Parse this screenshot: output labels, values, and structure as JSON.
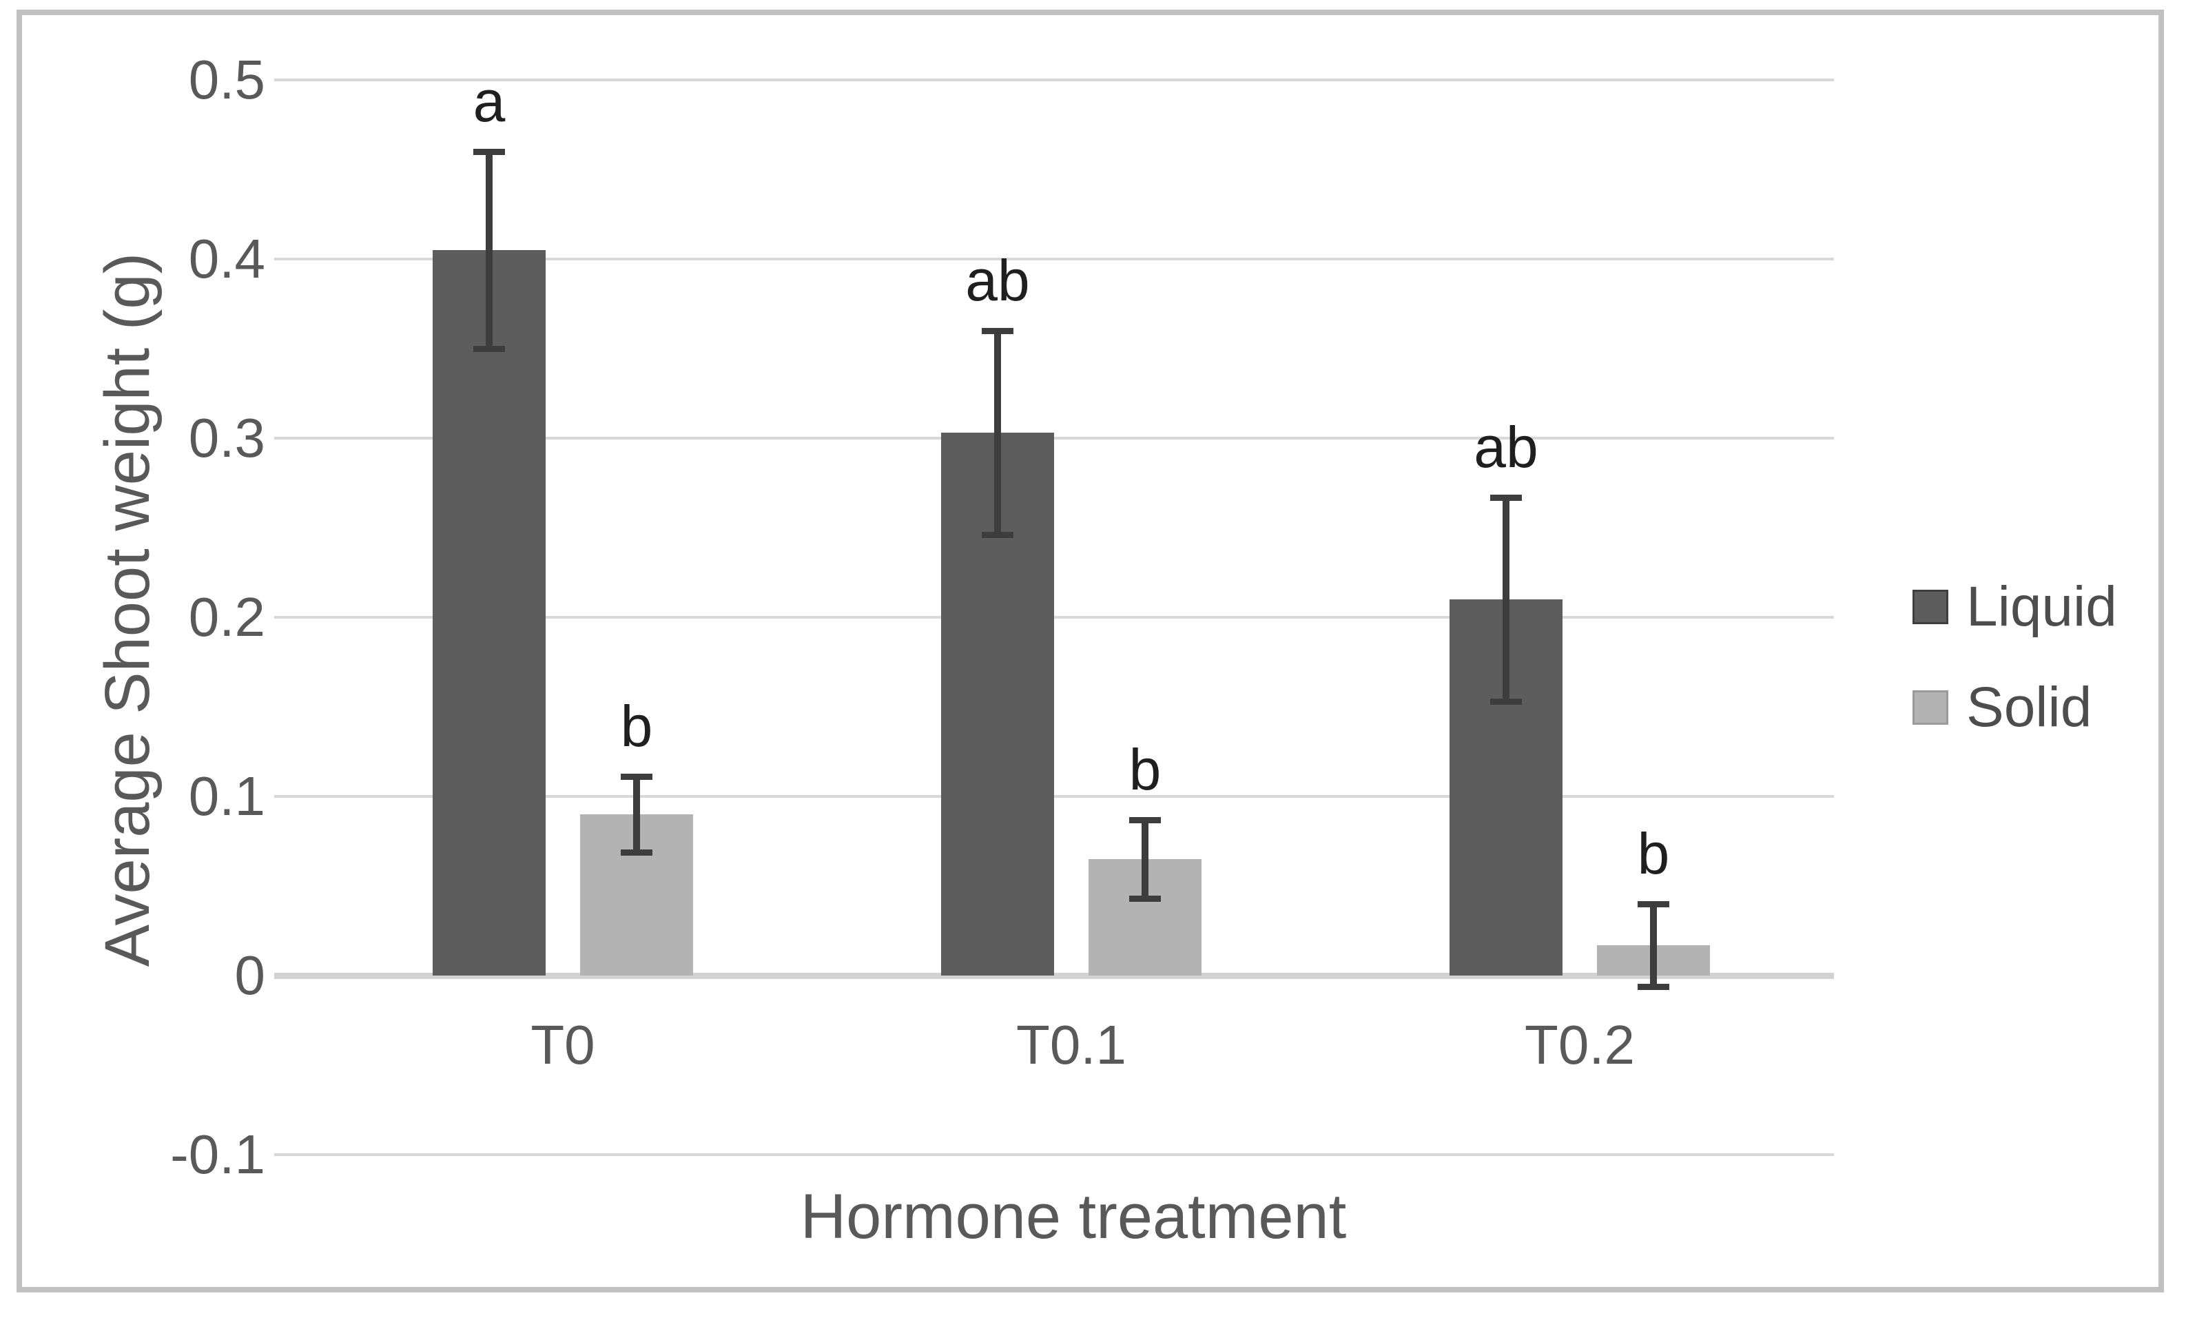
{
  "figure": {
    "border_color": "#c1c1c1",
    "background": "#ffffff"
  },
  "chart_data": {
    "type": "bar",
    "title": "",
    "categories": [
      "T0",
      "T0.1",
      "T0.2"
    ],
    "series": [
      {
        "name": "Liquid",
        "color": "#5d5d5d",
        "values": [
          0.405,
          0.303,
          0.21
        ],
        "error_bars": [
          0.055,
          0.057,
          0.057
        ],
        "sig_letters": [
          "a",
          "ab",
          "ab"
        ]
      },
      {
        "name": "Solid",
        "color": "#b3b3b3",
        "values": [
          0.09,
          0.065,
          0.017
        ],
        "error_bars": [
          0.021,
          0.022,
          0.023
        ],
        "sig_letters": [
          "b",
          "b",
          "b"
        ]
      }
    ],
    "xlabel": "Hormone treatment",
    "ylabel": "Average Shoot weight (g)",
    "ylim": [
      -0.1,
      0.5
    ],
    "ytick_step": 0.1,
    "ytick_labels": [
      "0.5",
      "0.4",
      "0.3",
      "0.2",
      "0.1",
      "0",
      "-0.1"
    ],
    "ytick_values": [
      0.5,
      0.4,
      0.3,
      0.2,
      0.1,
      0,
      -0.1
    ],
    "grid": true,
    "error_bar_color": "#3d3d3d",
    "gridline_color": "#d9d9d9",
    "tick_label_color": "#595959",
    "sig_letter_color": "#1f1f1f",
    "legend_position": "right"
  }
}
